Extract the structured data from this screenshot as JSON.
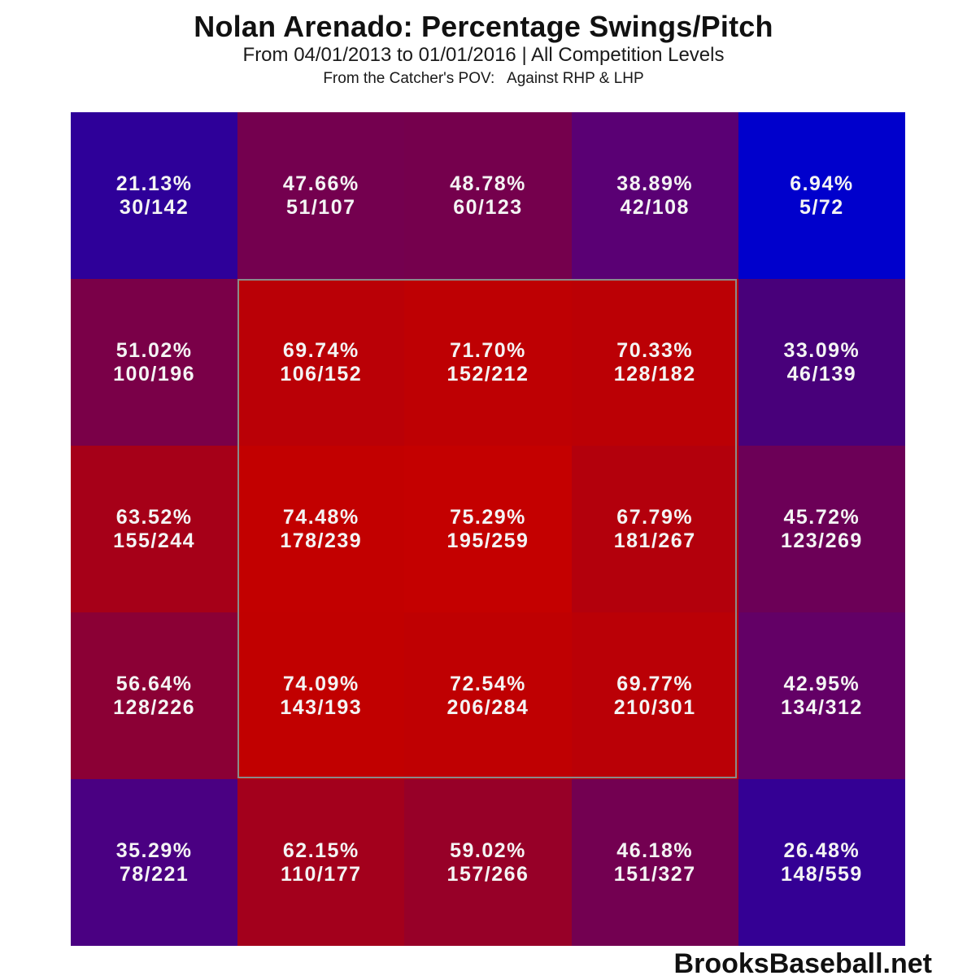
{
  "chart_data": {
    "type": "heatmap",
    "title": "Nolan Arenado: Percentage Swings/Pitch",
    "subtitle": "From 04/01/2013 to 01/01/2016 | All Competition Levels",
    "subtitle2": "From the Catcher's POV:   Against RHP & LHP",
    "footer": "BrooksBaseball.net",
    "rows": 5,
    "cols": 5,
    "strike_zone": {
      "row_start": 1,
      "row_end": 3,
      "col_start": 1,
      "col_end": 3
    },
    "cells": [
      [
        {
          "pct": "21.13%",
          "frac": "30/142",
          "color": "#2e0099"
        },
        {
          "pct": "47.66%",
          "frac": "51/107",
          "color": "#74004f"
        },
        {
          "pct": "48.78%",
          "frac": "60/123",
          "color": "#75004d"
        },
        {
          "pct": "38.89%",
          "frac": "42/108",
          "color": "#5a0074"
        },
        {
          "pct": "6.94%",
          "frac": "5/72",
          "color": "#0000cc"
        }
      ],
      [
        {
          "pct": "51.02%",
          "frac": "100/196",
          "color": "#7a0048"
        },
        {
          "pct": "69.74%",
          "frac": "106/152",
          "color": "#ba0006"
        },
        {
          "pct": "71.70%",
          "frac": "152/212",
          "color": "#be0003"
        },
        {
          "pct": "70.33%",
          "frac": "128/182",
          "color": "#bb0005"
        },
        {
          "pct": "33.09%",
          "frac": "46/139",
          "color": "#48007a"
        }
      ],
      [
        {
          "pct": "63.52%",
          "frac": "155/244",
          "color": "#a60018"
        },
        {
          "pct": "74.48%",
          "frac": "178/239",
          "color": "#c20000"
        },
        {
          "pct": "75.29%",
          "frac": "195/259",
          "color": "#c40000"
        },
        {
          "pct": "67.79%",
          "frac": "181/267",
          "color": "#b3000c"
        },
        {
          "pct": "45.72%",
          "frac": "123/269",
          "color": "#6c0057"
        }
      ],
      [
        {
          "pct": "56.64%",
          "frac": "128/226",
          "color": "#8b0035"
        },
        {
          "pct": "74.09%",
          "frac": "143/193",
          "color": "#c10000"
        },
        {
          "pct": "72.54%",
          "frac": "206/284",
          "color": "#bf0002"
        },
        {
          "pct": "69.77%",
          "frac": "210/301",
          "color": "#ba0006"
        },
        {
          "pct": "42.95%",
          "frac": "134/312",
          "color": "#630066"
        }
      ],
      [
        {
          "pct": "35.29%",
          "frac": "78/221",
          "color": "#4a0082"
        },
        {
          "pct": "62.15%",
          "frac": "110/177",
          "color": "#a3001c"
        },
        {
          "pct": "59.02%",
          "frac": "157/266",
          "color": "#970028"
        },
        {
          "pct": "46.18%",
          "frac": "151/327",
          "color": "#730051"
        },
        {
          "pct": "26.48%",
          "frac": "148/559",
          "color": "#340094"
        }
      ]
    ],
    "values": [
      [
        21.13,
        47.66,
        48.78,
        38.89,
        6.94
      ],
      [
        51.02,
        69.74,
        71.7,
        70.33,
        33.09
      ],
      [
        63.52,
        74.48,
        75.29,
        67.79,
        45.72
      ],
      [
        56.64,
        74.09,
        72.54,
        69.77,
        42.95
      ],
      [
        35.29,
        62.15,
        59.02,
        46.18,
        26.48
      ]
    ],
    "color_scale": {
      "low": "#0000cc",
      "high": "#c40000"
    }
  }
}
